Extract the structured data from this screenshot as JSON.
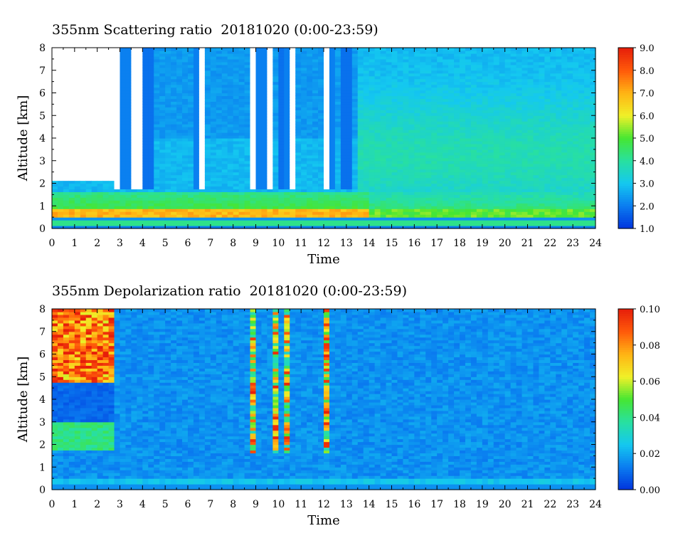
{
  "chart_data": [
    {
      "type": "heatmap",
      "title": "355nm Scattering ratio  20181020 (0:00-23:59)",
      "xlabel": "Time",
      "ylabel": "Altitude [km]",
      "xlim": [
        0,
        24
      ],
      "ylim": [
        0,
        8
      ],
      "x_ticks": [
        0,
        1,
        2,
        3,
        4,
        5,
        6,
        7,
        8,
        9,
        10,
        11,
        12,
        13,
        14,
        15,
        16,
        17,
        18,
        19,
        20,
        21,
        22,
        23,
        24
      ],
      "y_ticks": [
        0,
        1,
        2,
        3,
        4,
        5,
        6,
        7,
        8
      ],
      "colorbar": {
        "min": 1.0,
        "max": 9.0,
        "ticks": [
          "1.0",
          "2.0",
          "3.0",
          "4.0",
          "5.0",
          "6.0",
          "7.0",
          "8.0",
          "9.0"
        ]
      },
      "colorscale": [
        "#0033dd",
        "#0a7cf0",
        "#14c8f0",
        "#28e0a0",
        "#46e632",
        "#f0f028",
        "#ffb414",
        "#ff5a0a",
        "#e61e0a"
      ],
      "no_data_color": "#ffffff",
      "no_data_intervals_before_3h": {
        "x": [
          0,
          2.85
        ],
        "y": [
          2.1,
          8
        ]
      },
      "cloud_columns": [
        2.9,
        3.6,
        3.9,
        4.25,
        6.6,
        8.9,
        9.6,
        10.25,
        10.6,
        12.15,
        13.0
      ],
      "boundary_layer_top_km": 1.5,
      "surface_line_km": 0.4
    },
    {
      "type": "heatmap",
      "title": "355nm Depolarization ratio  20181020 (0:00-23:59)",
      "xlabel": "Time",
      "ylabel": "Altitude [km]",
      "xlim": [
        0,
        24
      ],
      "ylim": [
        0,
        8
      ],
      "x_ticks": [
        0,
        1,
        2,
        3,
        4,
        5,
        6,
        7,
        8,
        9,
        10,
        11,
        12,
        13,
        14,
        15,
        16,
        17,
        18,
        19,
        20,
        21,
        22,
        23,
        24
      ],
      "y_ticks": [
        0,
        1,
        2,
        3,
        4,
        5,
        6,
        7,
        8
      ],
      "colorbar": {
        "min": 0.0,
        "max": 0.1,
        "ticks": [
          "0.00",
          "0.02",
          "0.04",
          "0.06",
          "0.08",
          "0.10"
        ]
      },
      "colorscale": [
        "#0033dd",
        "#0a7cf0",
        "#14c8f0",
        "#28e0a0",
        "#46e632",
        "#f0f028",
        "#ffb414",
        "#ff5a0a",
        "#e61e0a"
      ],
      "high_depol_region": {
        "x": [
          0,
          2.75
        ],
        "y": [
          4.8,
          8
        ]
      },
      "cloud_columns": [
        8.9,
        9.9,
        10.4,
        12.15
      ]
    }
  ]
}
